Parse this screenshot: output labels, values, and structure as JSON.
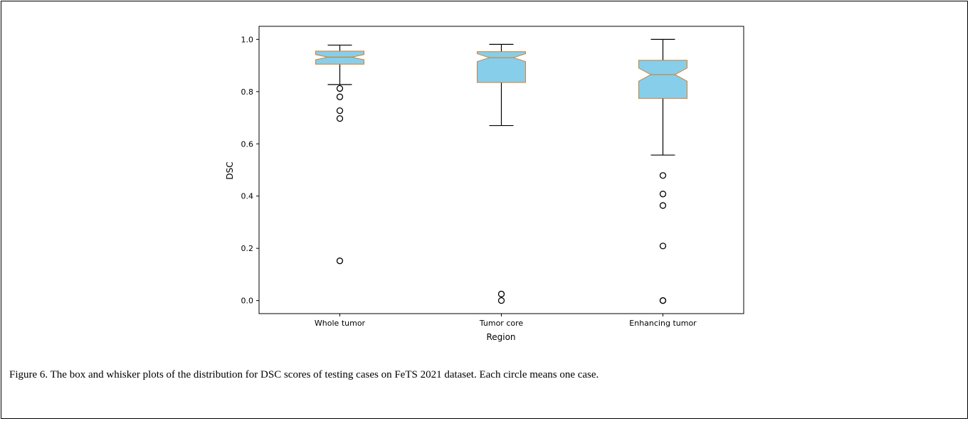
{
  "figure": {
    "caption": "Figure 6. The box and whisker plots of the distribution for DSC scores of testing cases on FeTS 2021 dataset. Each circle means one case."
  },
  "chart_data": {
    "type": "box",
    "xlabel": "Region",
    "ylabel": "DSC",
    "ylim": [
      -0.05,
      1.05
    ],
    "yticks": [
      0.0,
      0.2,
      0.4,
      0.6,
      0.8,
      1.0
    ],
    "ytick_labels": [
      "0.0",
      "0.2",
      "0.4",
      "0.6",
      "0.8",
      "1.0"
    ],
    "grid": false,
    "notched": true,
    "box_color": "#87ceeb",
    "box_edge_color": "#d08030",
    "series": [
      {
        "category": "Whole tumor",
        "whisker_low": 0.827,
        "q1": 0.905,
        "median": 0.932,
        "q3": 0.955,
        "whisker_high": 0.978,
        "notch_low": 0.922,
        "notch_high": 0.942,
        "outliers": [
          0.812,
          0.78,
          0.727,
          0.697,
          0.152
        ]
      },
      {
        "category": "Tumor core",
        "whisker_low": 0.67,
        "q1": 0.835,
        "median": 0.93,
        "q3": 0.953,
        "whisker_high": 0.981,
        "notch_low": 0.915,
        "notch_high": 0.945,
        "outliers": [
          0.025,
          0.0
        ]
      },
      {
        "category": "Enhancing tumor",
        "whisker_low": 0.557,
        "q1": 0.774,
        "median": 0.865,
        "q3": 0.92,
        "whisker_high": 1.0,
        "notch_low": 0.84,
        "notch_high": 0.89,
        "outliers": [
          0.479,
          0.408,
          0.364,
          0.209,
          0.0,
          0.0
        ]
      }
    ]
  }
}
